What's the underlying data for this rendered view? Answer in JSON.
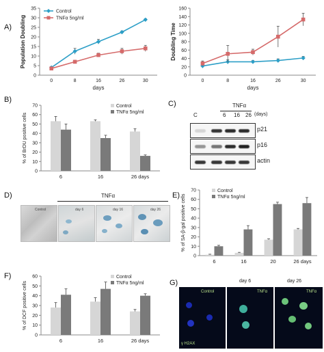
{
  "panels": {
    "A": "A)",
    "B": "B)",
    "C": "C)",
    "D": "D)",
    "E": "E)",
    "F": "F)",
    "G": "G)"
  },
  "chart_data": [
    {
      "id": "A1",
      "type": "line",
      "x": [
        0,
        8,
        16,
        26,
        30
      ],
      "x_ticks": [
        "0",
        "8",
        "16",
        "26",
        "30"
      ],
      "xlabel": "days",
      "ylabel": "Population Doubling",
      "ylim": [
        0,
        35
      ],
      "yticks": [
        0,
        5,
        10,
        15,
        20,
        25,
        30,
        35
      ],
      "legend_position": "top-left",
      "series": [
        {
          "name": "Control",
          "color": "#2d9fc7",
          "marker": "diamond",
          "values": [
            4,
            12.5,
            17.5,
            22.5,
            29
          ],
          "errors": [
            0.5,
            1.5,
            1.2,
            0.6,
            0.5
          ]
        },
        {
          "name": "TNFα 5ng/ml",
          "color": "#d56a6a",
          "marker": "square",
          "values": [
            3.5,
            7,
            10.5,
            12.5,
            14
          ],
          "errors": [
            0.5,
            0.8,
            1.0,
            1.5,
            1.6
          ]
        }
      ]
    },
    {
      "id": "A2",
      "type": "line",
      "x": [
        0,
        8,
        16,
        26,
        30
      ],
      "x_ticks": [
        "0",
        "8",
        "16",
        "26",
        "30"
      ],
      "xlabel": "days",
      "ylabel": "Doubling Time",
      "ylim": [
        0,
        160
      ],
      "yticks": [
        0,
        20,
        40,
        60,
        80,
        100,
        120,
        140,
        160
      ],
      "series": [
        {
          "name": "Control",
          "color": "#2d9fc7",
          "marker": "diamond",
          "values": [
            22,
            32,
            32,
            35,
            41
          ],
          "errors": [
            3,
            5,
            3,
            4,
            4
          ]
        },
        {
          "name": "TNFα 5ng/ml",
          "color": "#d56a6a",
          "marker": "square",
          "values": [
            28,
            51,
            55,
            92,
            133
          ],
          "errors": [
            6,
            20,
            7,
            25,
            15
          ]
        }
      ]
    },
    {
      "id": "B",
      "type": "bar",
      "categories": [
        "6",
        "16",
        "26 days"
      ],
      "ylabel": "% of BrDU positive cells",
      "ylim": [
        0,
        70
      ],
      "yticks": [
        0,
        10,
        20,
        30,
        40,
        50,
        60,
        70
      ],
      "legend_position": "top-right",
      "series": [
        {
          "name": "Control",
          "color": "#d6d6d6",
          "values": [
            53,
            53,
            42
          ],
          "errors": [
            5,
            1.5,
            3
          ]
        },
        {
          "name": "TNFα 5ng/ml",
          "color": "#7a7a7a",
          "values": [
            44,
            35,
            16
          ],
          "errors": [
            6,
            3,
            1
          ]
        }
      ]
    },
    {
      "id": "E",
      "type": "bar",
      "categories": [
        "6",
        "16",
        "20",
        "26 days"
      ],
      "ylabel": "% of SA-β-gal  positive  cells",
      "ylim": [
        0,
        70
      ],
      "yticks": [
        0,
        10,
        20,
        30,
        40,
        50,
        60,
        70
      ],
      "legend_position": "top-left",
      "series": [
        {
          "name": "Control",
          "color": "#d6d6d6",
          "values": [
            1,
            3,
            17,
            28
          ],
          "errors": [
            0.5,
            0.5,
            1,
            1
          ]
        },
        {
          "name": "TNFα 5ng/ml",
          "color": "#7a7a7a",
          "values": [
            10,
            28,
            55,
            56
          ],
          "errors": [
            1,
            4,
            2,
            6
          ]
        }
      ]
    },
    {
      "id": "F",
      "type": "bar",
      "categories": [
        "6",
        "16",
        "26 days"
      ],
      "ylabel": "% of DCF positive cells",
      "ylim": [
        0,
        60
      ],
      "yticks": [
        0,
        10,
        20,
        30,
        40,
        50,
        60
      ],
      "legend_position": "top-right",
      "series": [
        {
          "name": "Control",
          "color": "#d6d6d6",
          "values": [
            28,
            34,
            24
          ],
          "errors": [
            5,
            4,
            2
          ]
        },
        {
          "name": "TNFα 5ng/ml",
          "color": "#7a7a7a",
          "values": [
            41,
            47,
            40
          ],
          "errors": [
            6,
            7,
            2
          ]
        }
      ]
    }
  ],
  "blot": {
    "tnf_label": "TNFα",
    "lanes": [
      "C",
      "6",
      "16",
      "26"
    ],
    "days_label": "(days)",
    "rows": [
      {
        "label": "p21",
        "intensity": [
          0.15,
          0.9,
          0.95,
          0.95
        ]
      },
      {
        "label": "p16",
        "intensity": [
          0.45,
          0.6,
          0.95,
          1.0
        ]
      },
      {
        "label": "actin",
        "intensity": [
          0.9,
          0.9,
          0.9,
          0.9
        ]
      }
    ]
  },
  "micrographs": {
    "tnf_label": "TNFα",
    "images": [
      "Control",
      "day 6",
      "day 16",
      "day 26"
    ]
  },
  "fluorescence": {
    "images": [
      {
        "top": "",
        "inner": "Control"
      },
      {
        "top": "day 6",
        "inner": "TNFα"
      },
      {
        "top": "day 26",
        "inner": "TNFα"
      }
    ],
    "marker_label": "γ H2AX"
  }
}
